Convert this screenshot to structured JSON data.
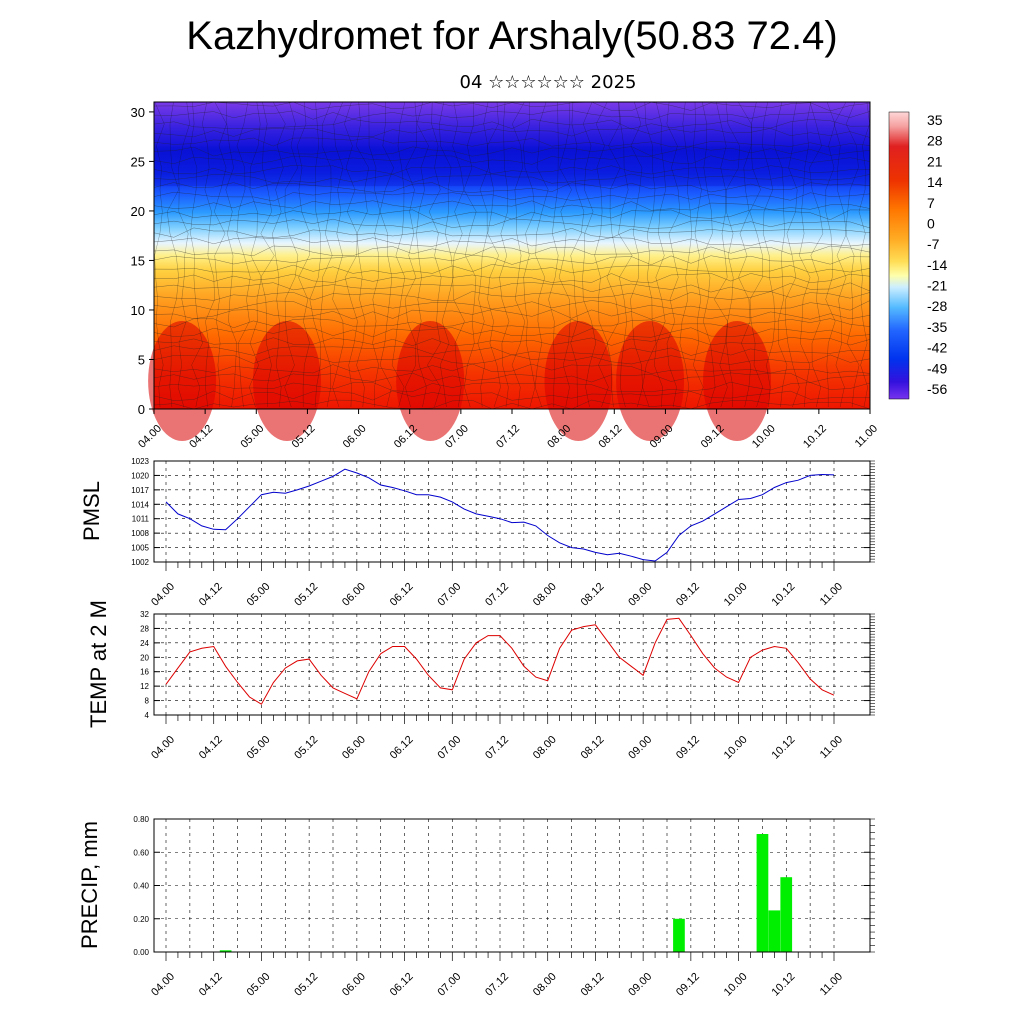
{
  "title": "Kazhydromet for Arshaly(50.83 72.4)",
  "subtitle": "04 ☆☆☆☆☆☆ 2025",
  "time_labels": [
    "04.00",
    "04.12",
    "05.00",
    "05.12",
    "06.00",
    "06.12",
    "07.00",
    "07.12",
    "08.00",
    "08.12",
    "09.00",
    "09.12",
    "10.00",
    "10.12",
    "11.00"
  ],
  "chart_data": [
    {
      "type": "heatmap",
      "name": "upper-air-section",
      "xlabel": "",
      "ylabel": "",
      "ylim": [
        0,
        31
      ],
      "yticks": [
        0,
        5,
        10,
        15,
        20,
        25,
        30
      ],
      "x": [
        "04.00",
        "04.12",
        "05.00",
        "05.12",
        "06.00",
        "06.12",
        "07.00",
        "07.12",
        "08.00",
        "08.12",
        "09.00",
        "09.12",
        "10.00",
        "10.12",
        "11.00"
      ],
      "colorbar_labels": [
        "35",
        "28",
        "21",
        "14",
        "7",
        "0",
        "-7",
        "-14",
        "-21",
        "-28",
        "-35",
        "-42",
        "-49",
        "-56"
      ],
      "colorbar_range": [
        -60,
        38
      ],
      "levels_temp_profile": [
        {
          "level": 0,
          "temp": 30
        },
        {
          "level": 5,
          "temp": 24
        },
        {
          "level": 10,
          "temp": 14
        },
        {
          "level": 15,
          "temp": -8
        },
        {
          "level": 18,
          "temp": -25
        },
        {
          "level": 20,
          "temp": -38
        },
        {
          "level": 22,
          "temp": -50
        },
        {
          "level": 24,
          "temp": -58
        },
        {
          "level": 27,
          "temp": -56
        },
        {
          "level": 31,
          "temp": -52
        }
      ]
    },
    {
      "type": "line",
      "name": "pmsl",
      "ylabel": "PMSL",
      "ylim": [
        1002,
        1023
      ],
      "yticks": [
        1002,
        1005,
        1008,
        1011,
        1014,
        1017,
        1020,
        1023
      ],
      "color": "#0000cc",
      "x_hours": [
        0,
        3,
        6,
        9,
        12,
        15,
        18,
        21,
        24,
        27,
        30,
        33,
        36,
        39,
        42,
        45,
        48,
        51,
        54,
        57,
        60,
        63,
        66,
        69,
        72,
        75,
        78,
        81,
        84,
        87,
        90,
        93,
        96,
        99,
        102,
        105,
        108,
        111,
        114,
        117,
        120,
        123,
        126,
        129,
        132,
        135,
        138,
        141,
        144,
        147,
        150,
        153,
        156,
        159,
        162,
        165,
        168
      ],
      "values": [
        1014.5,
        1012,
        1011,
        1009.5,
        1008.8,
        1008.7,
        1011,
        1013.5,
        1016,
        1016.5,
        1016.3,
        1017,
        1017.8,
        1018.8,
        1019.8,
        1021.3,
        1020.5,
        1019.5,
        1018,
        1017.5,
        1016.8,
        1016,
        1016,
        1015.5,
        1014.5,
        1013,
        1012,
        1011.5,
        1011,
        1010.2,
        1010.3,
        1009.5,
        1007.5,
        1006,
        1005,
        1004.7,
        1004,
        1003.5,
        1003.8,
        1003.2,
        1002.5,
        1002.2,
        1004,
        1007.5,
        1009.5,
        1010.5,
        1012,
        1013.5,
        1015,
        1015.2,
        1016,
        1017.5,
        1018.5,
        1019,
        1020,
        1020.2,
        1020.1
      ]
    },
    {
      "type": "line",
      "name": "temp-2m",
      "ylabel": "TEMP at 2 M",
      "ylim": [
        4,
        32
      ],
      "yticks": [
        4,
        8,
        12,
        16,
        20,
        24,
        28,
        32
      ],
      "color": "#dd0000",
      "x_hours": [
        0,
        3,
        6,
        9,
        12,
        15,
        18,
        21,
        24,
        27,
        30,
        33,
        36,
        39,
        42,
        45,
        48,
        51,
        54,
        57,
        60,
        63,
        66,
        69,
        72,
        75,
        78,
        81,
        84,
        87,
        90,
        93,
        96,
        99,
        102,
        105,
        108,
        111,
        114,
        117,
        120,
        123,
        126,
        129,
        132,
        135,
        138,
        141,
        144,
        147,
        150,
        153,
        156,
        159,
        162,
        165,
        168
      ],
      "values": [
        12.5,
        17,
        21.5,
        22.5,
        23,
        17.5,
        13,
        9,
        7,
        13,
        17,
        19,
        19.5,
        15,
        11.5,
        10,
        8.5,
        16,
        21,
        23,
        23,
        19.5,
        15,
        11.5,
        11,
        19.5,
        24,
        26,
        26,
        22.5,
        17.5,
        14.5,
        13.5,
        22.5,
        27.5,
        28.5,
        29,
        24.5,
        20,
        17.5,
        15,
        24,
        30.5,
        30.8,
        26,
        21,
        17,
        14.5,
        13,
        20,
        22,
        23,
        22.5,
        18.5,
        14,
        11,
        9.5
      ]
    },
    {
      "type": "bar",
      "name": "precip",
      "ylabel": "PRECIP, mm",
      "ylim": [
        0,
        0.8
      ],
      "yticks": [
        "0.00",
        "0.20",
        "0.40",
        "0.60",
        "0.80"
      ],
      "color": "#00ee00",
      "bars": [
        {
          "x_hours": 15,
          "value": 0.01
        },
        {
          "x_hours": 129,
          "value": 0.2
        },
        {
          "x_hours": 150,
          "value": 0.71
        },
        {
          "x_hours": 153,
          "value": 0.25
        },
        {
          "x_hours": 156,
          "value": 0.45
        }
      ]
    }
  ]
}
